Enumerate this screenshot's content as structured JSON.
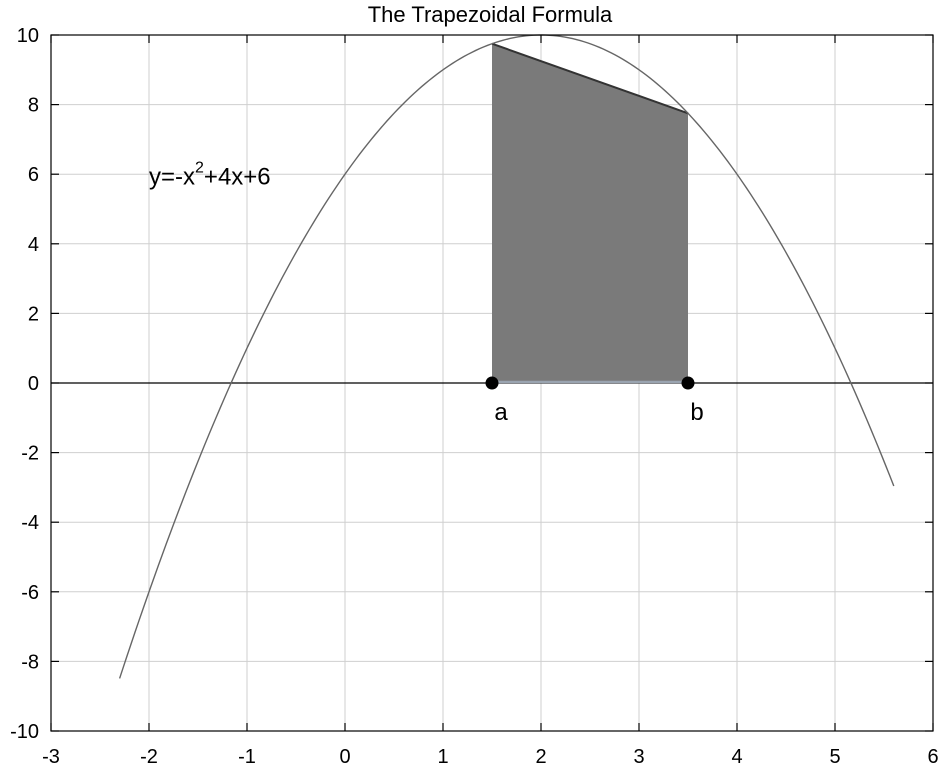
{
  "chart_data": {
    "type": "line",
    "title": "The Trapezoidal Formula",
    "xlabel": "",
    "ylabel": "",
    "xlim": [
      -3,
      6
    ],
    "ylim": [
      -10,
      10
    ],
    "x_ticks": [
      -3,
      -2,
      -1,
      0,
      1,
      2,
      3,
      4,
      5,
      6
    ],
    "y_ticks": [
      -10,
      -8,
      -6,
      -4,
      -2,
      0,
      2,
      4,
      6,
      8,
      10
    ],
    "grid": true,
    "series": [
      {
        "function": "-x^2+4x+6",
        "x_range": [
          -2.3,
          5.6
        ],
        "color": "#666666"
      }
    ],
    "trapezoid": {
      "a": 1.5,
      "b": 3.5,
      "fa": 9.75,
      "fb": 7.75,
      "fill": "#7a7a7a",
      "edge": "#333333",
      "base_color": "#9aa4b0"
    },
    "points": [
      {
        "label": "a",
        "x": 1.5,
        "y": 0
      },
      {
        "label": "b",
        "x": 3.5,
        "y": 0
      }
    ],
    "annotation": {
      "prefix": "y=-x",
      "sup": "2",
      "suffix": "+4x+6",
      "anchor_x": -2,
      "anchor_y": 5.7
    },
    "x_axis_line": {
      "y": 0,
      "color": "#000000"
    }
  }
}
